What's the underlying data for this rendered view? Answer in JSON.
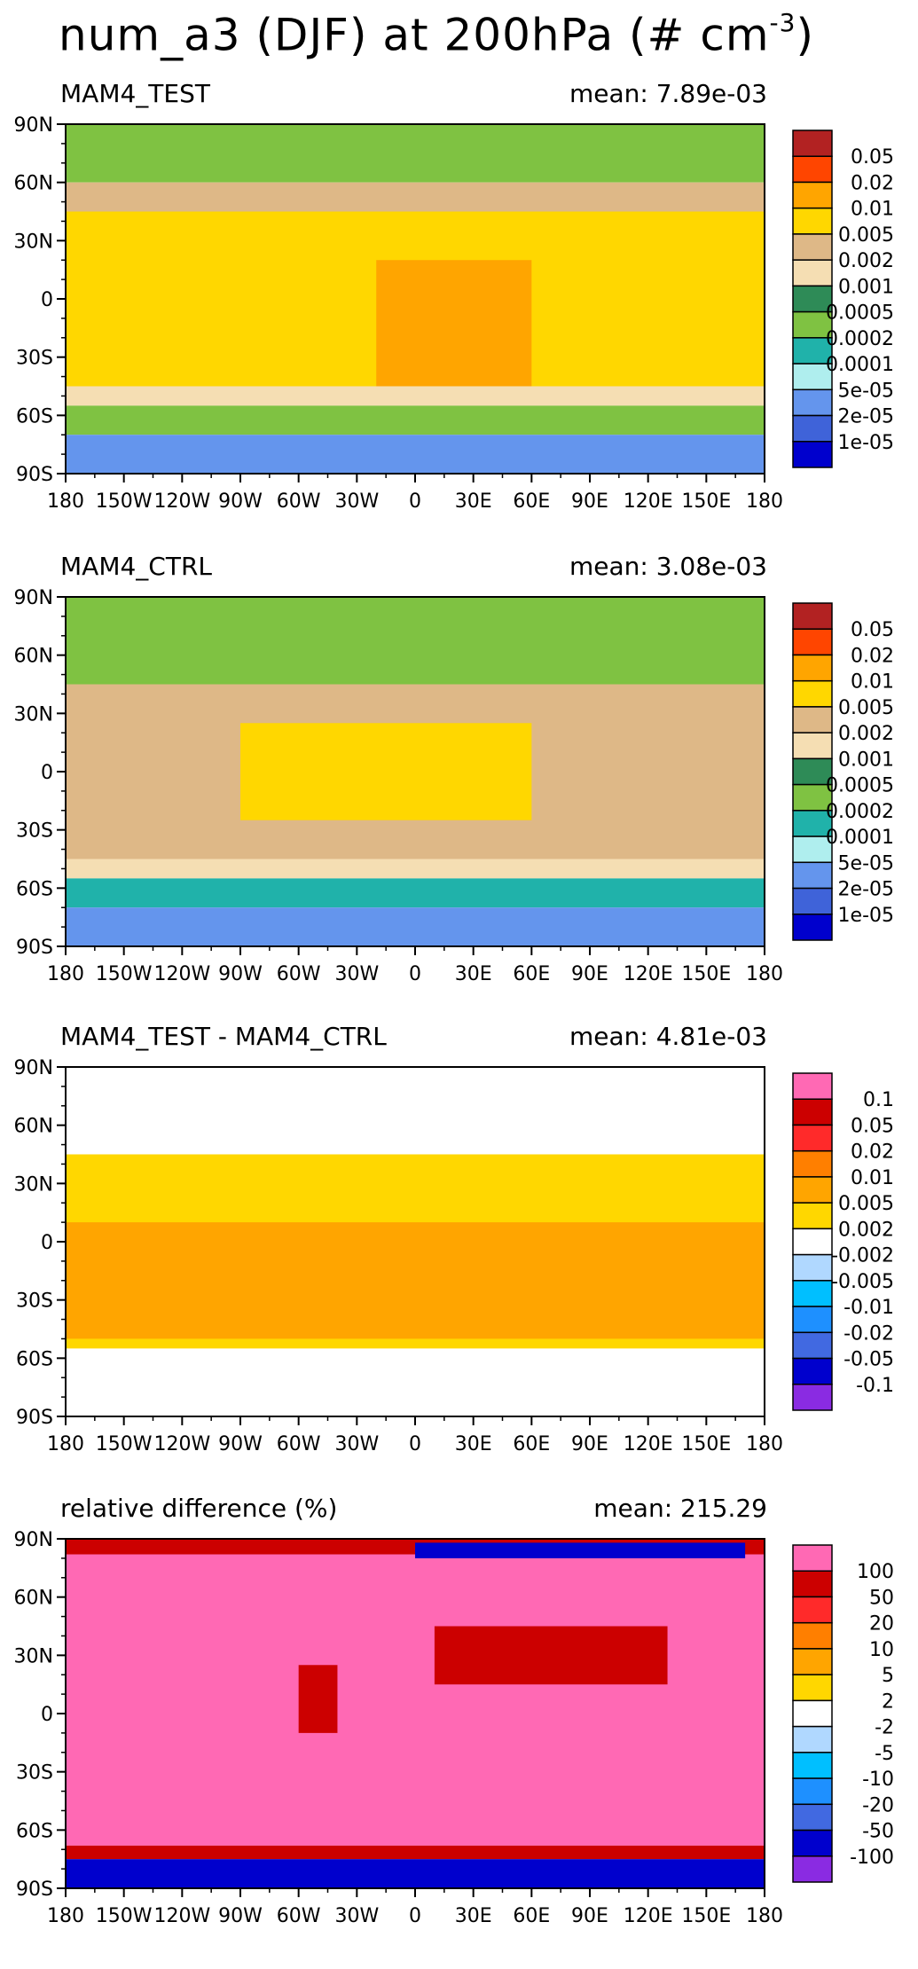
{
  "figure": {
    "title_main": "num_a3 (DJF) at 200hPa (# cm",
    "title_sup": "-3",
    "title_close": ")"
  },
  "chart_data": [
    {
      "type": "heatmap",
      "title": "MAM4_TEST",
      "mean_label": "mean: 7.89e-03",
      "x_ticks": [
        "180",
        "150W",
        "120W",
        "90W",
        "60W",
        "30W",
        "0",
        "30E",
        "60E",
        "90E",
        "120E",
        "150E",
        "180"
      ],
      "y_ticks": [
        "90N",
        "60N",
        "30N",
        "0",
        "30S",
        "60S",
        "90S"
      ],
      "xlim": [
        -180,
        180
      ],
      "ylim": [
        -90,
        90
      ],
      "colorbar": {
        "labels": [
          "0.05",
          "0.02",
          "0.01",
          "0.005",
          "0.002",
          "0.001",
          "0.0005",
          "0.0002",
          "0.0001",
          "5e-05",
          "2e-05",
          "1e-05"
        ],
        "colors": [
          "#b22222",
          "#ff4500",
          "#ffa500",
          "#ffd700",
          "#deb887",
          "#f5deb3",
          "#2e8b57",
          "#7fc242",
          "#20b2aa",
          "#afeeee",
          "#6495ed",
          "#3f63d9",
          "#0000cd"
        ]
      },
      "bands": [
        {
          "lat": [
            60,
            90
          ],
          "level": "#7fc242"
        },
        {
          "lat": [
            45,
            60
          ],
          "level": "#deb887"
        },
        {
          "lat": [
            -45,
            45
          ],
          "level": "#ffd700"
        },
        {
          "lat": [
            -48,
            20
          ],
          "lon": [
            -20,
            60
          ],
          "level": "#ffa500"
        },
        {
          "lat": [
            -55,
            -45
          ],
          "level": "#f5deb3"
        },
        {
          "lat": [
            -70,
            -55
          ],
          "level": "#7fc242"
        },
        {
          "lat": [
            -90,
            -70
          ],
          "level": "#6495ed"
        }
      ]
    },
    {
      "type": "heatmap",
      "title": "MAM4_CTRL",
      "mean_label": "mean: 3.08e-03",
      "x_ticks": [
        "180",
        "150W",
        "120W",
        "90W",
        "60W",
        "30W",
        "0",
        "30E",
        "60E",
        "90E",
        "120E",
        "150E",
        "180"
      ],
      "y_ticks": [
        "90N",
        "60N",
        "30N",
        "0",
        "30S",
        "60S",
        "90S"
      ],
      "xlim": [
        -180,
        180
      ],
      "ylim": [
        -90,
        90
      ],
      "colorbar": {
        "labels": [
          "0.05",
          "0.02",
          "0.01",
          "0.005",
          "0.002",
          "0.001",
          "0.0005",
          "0.0002",
          "0.0001",
          "5e-05",
          "2e-05",
          "1e-05"
        ],
        "colors": [
          "#b22222",
          "#ff4500",
          "#ffa500",
          "#ffd700",
          "#deb887",
          "#f5deb3",
          "#2e8b57",
          "#7fc242",
          "#20b2aa",
          "#afeeee",
          "#6495ed",
          "#3f63d9",
          "#0000cd"
        ]
      },
      "bands": [
        {
          "lat": [
            45,
            90
          ],
          "level": "#7fc242"
        },
        {
          "lat": [
            -45,
            45
          ],
          "level": "#deb887"
        },
        {
          "lat": [
            -25,
            25
          ],
          "lon": [
            -90,
            60
          ],
          "level": "#ffd700"
        },
        {
          "lat": [
            -55,
            -45
          ],
          "level": "#f5deb3"
        },
        {
          "lat": [
            -70,
            -55
          ],
          "level": "#20b2aa"
        },
        {
          "lat": [
            -90,
            -70
          ],
          "level": "#6495ed"
        }
      ]
    },
    {
      "type": "heatmap",
      "title": "MAM4_TEST - MAM4_CTRL",
      "mean_label": "mean: 4.81e-03",
      "x_ticks": [
        "180",
        "150W",
        "120W",
        "90W",
        "60W",
        "30W",
        "0",
        "30E",
        "60E",
        "90E",
        "120E",
        "150E",
        "180"
      ],
      "y_ticks": [
        "90N",
        "60N",
        "30N",
        "0",
        "30S",
        "60S",
        "90S"
      ],
      "xlim": [
        -180,
        180
      ],
      "ylim": [
        -90,
        90
      ],
      "colorbar": {
        "labels": [
          "0.1",
          "0.05",
          "0.02",
          "0.01",
          "0.005",
          "0.002",
          "-0.002",
          "-0.005",
          "-0.01",
          "-0.02",
          "-0.05",
          "-0.1"
        ],
        "colors": [
          "#ff69b4",
          "#cc0000",
          "#ff2a2a",
          "#ff7f00",
          "#ffa500",
          "#ffd700",
          "#ffffff",
          "#b0d8ff",
          "#00bfff",
          "#1e90ff",
          "#4169e1",
          "#0000cd",
          "#8a2be2"
        ]
      },
      "bands": [
        {
          "lat": [
            50,
            90
          ],
          "level": "#ffffff"
        },
        {
          "lat": [
            -55,
            45
          ],
          "level": "#ffd700"
        },
        {
          "lat": [
            -50,
            10
          ],
          "level": "#ffa500"
        },
        {
          "lat": [
            -55,
            -50
          ],
          "level": "#ffd700"
        },
        {
          "lat": [
            -90,
            -55
          ],
          "level": "#ffffff"
        }
      ]
    },
    {
      "type": "heatmap",
      "title": "relative difference (%)",
      "mean_label": "mean: 215.29",
      "x_ticks": [
        "180",
        "150W",
        "120W",
        "90W",
        "60W",
        "30W",
        "0",
        "30E",
        "60E",
        "90E",
        "120E",
        "150E",
        "180"
      ],
      "y_ticks": [
        "90N",
        "60N",
        "30N",
        "0",
        "30S",
        "60S",
        "90S"
      ],
      "xlim": [
        -180,
        180
      ],
      "ylim": [
        -90,
        90
      ],
      "colorbar": {
        "labels": [
          "100",
          "50",
          "20",
          "10",
          "5",
          "2",
          "-2",
          "-5",
          "-10",
          "-20",
          "-50",
          "-100"
        ],
        "colors": [
          "#ff69b4",
          "#cc0000",
          "#ff2a2a",
          "#ff7f00",
          "#ffa500",
          "#ffd700",
          "#ffffff",
          "#b0d8ff",
          "#00bfff",
          "#1e90ff",
          "#4169e1",
          "#0000cd",
          "#8a2be2"
        ]
      },
      "bands": [
        {
          "lat": [
            -68,
            82
          ],
          "level": "#ff69b4"
        },
        {
          "lat": [
            82,
            90
          ],
          "level": "#cc0000"
        },
        {
          "lat": [
            80,
            88
          ],
          "lon": [
            0,
            170
          ],
          "level": "#0000cd"
        },
        {
          "lat": [
            15,
            45
          ],
          "lon": [
            10,
            130
          ],
          "level": "#cc0000"
        },
        {
          "lat": [
            -10,
            25
          ],
          "lon": [
            -60,
            -40
          ],
          "level": "#cc0000"
        },
        {
          "lat": [
            -75,
            -68
          ],
          "level": "#cc0000"
        },
        {
          "lat": [
            -90,
            -75
          ],
          "level": "#0000cd"
        }
      ]
    }
  ]
}
